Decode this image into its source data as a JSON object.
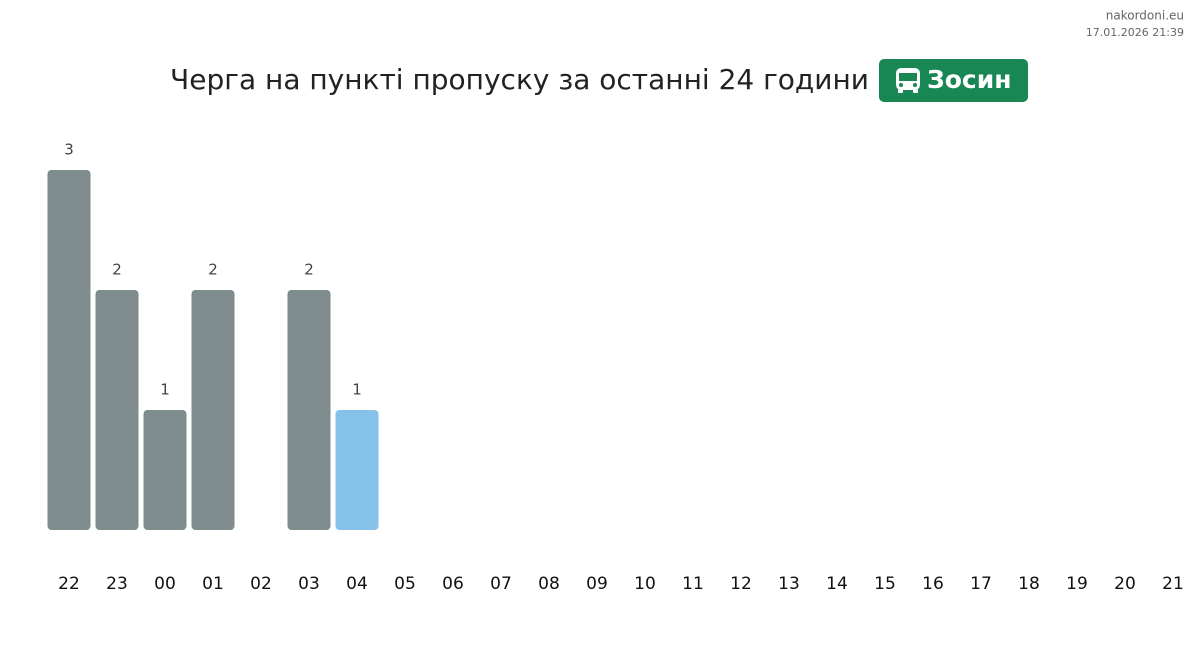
{
  "chart_data": {
    "type": "bar",
    "title": "Черга на пункті пропуску за останні 24 години",
    "badge": "Зосин",
    "site": "nakordoni.eu",
    "timestamp": "17.01.2026 21:39",
    "categories": [
      "22",
      "23",
      "00",
      "01",
      "02",
      "03",
      "04",
      "05",
      "06",
      "07",
      "08",
      "09",
      "10",
      "11",
      "12",
      "13",
      "14",
      "15",
      "16",
      "17",
      "18",
      "19",
      "20",
      "21"
    ],
    "values": [
      3,
      2,
      1,
      2,
      null,
      2,
      1,
      null,
      null,
      null,
      null,
      null,
      null,
      null,
      null,
      null,
      null,
      null,
      null,
      null,
      null,
      null,
      null,
      null
    ],
    "colors": [
      "#7f8c8d",
      "#7f8c8d",
      "#7f8c8d",
      "#7f8c8d",
      null,
      "#7f8c8d",
      "#85c1e9",
      null,
      null,
      null,
      null,
      null,
      null,
      null,
      null,
      null,
      null,
      null,
      null,
      null,
      null,
      null,
      null,
      null
    ],
    "ylim": [
      0,
      3
    ]
  }
}
